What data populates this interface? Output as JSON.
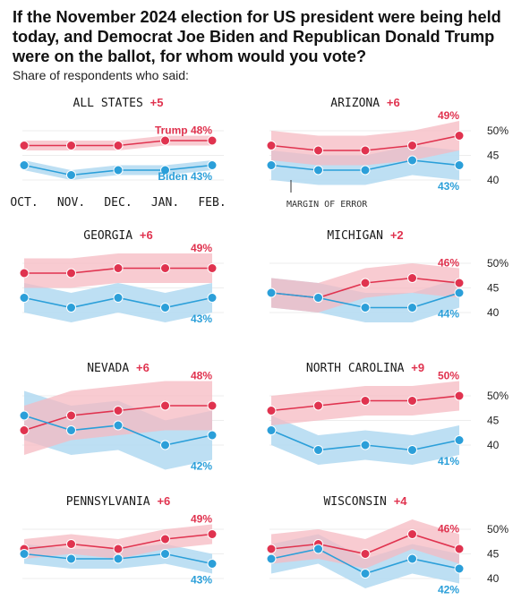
{
  "title": "If the November 2024 election for US president were being held today, and Democrat Joe Biden and Republican Donald Trump were on the ballot, for whom would you vote?",
  "subtitle": "Share of respondents who said:",
  "colors": {
    "trump": "#e0334f",
    "trump_band": "#f6b9c1",
    "biden": "#2b9fd9",
    "biden_band": "#b6dcf2",
    "overlap_band": "#b0aed2",
    "label_dark": "#1a1a1a",
    "axis": "#cfcfcf"
  },
  "labels": {
    "trump_name": "Trump",
    "biden_name": "Biden",
    "margin_of_error": "MARGIN OF ERROR",
    "x_months": [
      "OCT.",
      "NOV.",
      "DEC.",
      "JAN.",
      "FEB."
    ],
    "y_ticks": [
      "50%",
      "45",
      "40"
    ]
  },
  "chart_data": [
    {
      "type": "line",
      "state": "ALL STATES",
      "lead": "+5",
      "x": [
        "OCT.",
        "NOV.",
        "DEC.",
        "JAN.",
        "FEB."
      ],
      "series": [
        {
          "name": "Trump",
          "values": [
            47,
            47,
            47,
            48,
            48
          ],
          "moe": 1,
          "end_label": "Trump 48%"
        },
        {
          "name": "Biden",
          "values": [
            43,
            41,
            42,
            42,
            43
          ],
          "moe": 1,
          "end_label": "Biden 43%"
        }
      ],
      "ylim": [
        38,
        52
      ],
      "y_axis_ticks": false,
      "x_axis_labels": true
    },
    {
      "type": "line",
      "state": "ARIZONA",
      "lead": "+6",
      "x": [
        "OCT.",
        "NOV.",
        "DEC.",
        "JAN.",
        "FEB."
      ],
      "series": [
        {
          "name": "Trump",
          "values": [
            47,
            46,
            46,
            47,
            49
          ],
          "moe": 3,
          "end_label": "49%"
        },
        {
          "name": "Biden",
          "values": [
            43,
            42,
            42,
            44,
            43
          ],
          "moe": 3,
          "end_label": "43%"
        }
      ],
      "ylim": [
        38,
        52
      ],
      "y_axis_ticks": true,
      "annotation": "MARGIN OF ERROR"
    },
    {
      "type": "line",
      "state": "GEORGIA",
      "lead": "+6",
      "x": [
        "OCT.",
        "NOV.",
        "DEC.",
        "JAN.",
        "FEB."
      ],
      "series": [
        {
          "name": "Trump",
          "values": [
            48,
            48,
            49,
            49,
            49
          ],
          "moe": 3,
          "end_label": "49%"
        },
        {
          "name": "Biden",
          "values": [
            43,
            41,
            43,
            41,
            43
          ],
          "moe": 3,
          "end_label": "43%"
        }
      ],
      "ylim": [
        38,
        52
      ],
      "y_axis_ticks": false
    },
    {
      "type": "line",
      "state": "MICHIGAN",
      "lead": "+2",
      "x": [
        "OCT.",
        "NOV.",
        "DEC.",
        "JAN.",
        "FEB."
      ],
      "series": [
        {
          "name": "Trump",
          "values": [
            44,
            43,
            46,
            47,
            46
          ],
          "moe": 3,
          "end_label": "46%"
        },
        {
          "name": "Biden",
          "values": [
            44,
            43,
            41,
            41,
            44
          ],
          "moe": 3,
          "end_label": "44%"
        }
      ],
      "ylim": [
        38,
        52
      ],
      "y_axis_ticks": true
    },
    {
      "type": "line",
      "state": "NEVADA",
      "lead": "+6",
      "x": [
        "OCT.",
        "NOV.",
        "DEC.",
        "JAN.",
        "FEB."
      ],
      "series": [
        {
          "name": "Trump",
          "values": [
            43,
            46,
            47,
            48,
            48
          ],
          "moe": 5,
          "end_label": "48%"
        },
        {
          "name": "Biden",
          "values": [
            46,
            43,
            44,
            40,
            42
          ],
          "moe": 5,
          "end_label": "42%"
        }
      ],
      "ylim": [
        38,
        52
      ],
      "y_axis_ticks": false
    },
    {
      "type": "line",
      "state": "NORTH CAROLINA",
      "lead": "+9",
      "x": [
        "OCT.",
        "NOV.",
        "DEC.",
        "JAN.",
        "FEB."
      ],
      "series": [
        {
          "name": "Trump",
          "values": [
            47,
            48,
            49,
            49,
            50
          ],
          "moe": 3,
          "end_label": "50%"
        },
        {
          "name": "Biden",
          "values": [
            43,
            39,
            40,
            39,
            41
          ],
          "moe": 3,
          "end_label": "41%"
        }
      ],
      "ylim": [
        38,
        52
      ],
      "y_axis_ticks": true
    },
    {
      "type": "line",
      "state": "PENNSYLVANIA",
      "lead": "+6",
      "x": [
        "OCT.",
        "NOV.",
        "DEC.",
        "JAN.",
        "FEB."
      ],
      "series": [
        {
          "name": "Trump",
          "values": [
            46,
            47,
            46,
            48,
            49
          ],
          "moe": 2,
          "end_label": "49%"
        },
        {
          "name": "Biden",
          "values": [
            45,
            44,
            44,
            45,
            43
          ],
          "moe": 2,
          "end_label": "43%"
        }
      ],
      "ylim": [
        38,
        52
      ],
      "y_axis_ticks": false
    },
    {
      "type": "line",
      "state": "WISCONSIN",
      "lead": "+4",
      "x": [
        "OCT.",
        "NOV.",
        "DEC.",
        "JAN.",
        "FEB."
      ],
      "series": [
        {
          "name": "Trump",
          "values": [
            46,
            47,
            45,
            49,
            46
          ],
          "moe": 3,
          "end_label": "46%"
        },
        {
          "name": "Biden",
          "values": [
            44,
            46,
            41,
            44,
            42
          ],
          "moe": 3,
          "end_label": "42%"
        }
      ],
      "ylim": [
        38,
        52
      ],
      "y_axis_ticks": true
    }
  ]
}
